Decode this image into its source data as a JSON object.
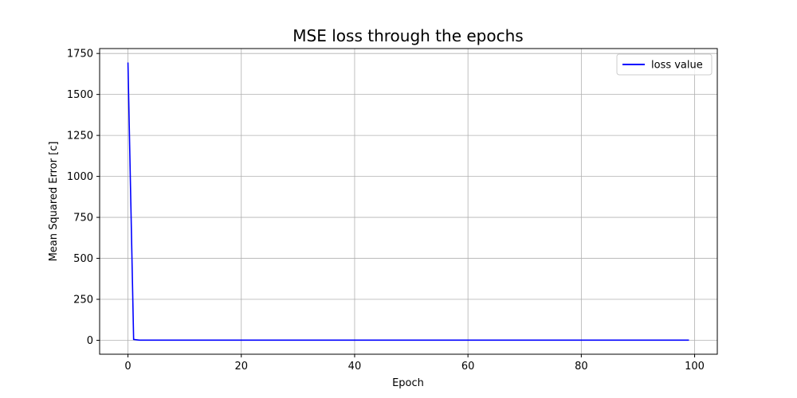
{
  "chart_data": {
    "type": "line",
    "title": "MSE loss through the epochs",
    "xlabel": "Epoch",
    "ylabel": "Mean Squared Error [c]",
    "xlim": [
      -5,
      104
    ],
    "ylim": [
      -85,
      1780
    ],
    "xticks": [
      0,
      20,
      40,
      60,
      80,
      100
    ],
    "yticks": [
      0,
      250,
      500,
      750,
      1000,
      1250,
      1500,
      1750
    ],
    "grid": true,
    "legend_position": "top-right",
    "series": [
      {
        "name": "loss value",
        "color": "#0000ff",
        "x": [
          0,
          1,
          2,
          5,
          10,
          20,
          30,
          40,
          50,
          60,
          70,
          80,
          90,
          99
        ],
        "y": [
          1695,
          5,
          1,
          1,
          1,
          1,
          1,
          1,
          1,
          1,
          1,
          1,
          1,
          1
        ]
      }
    ]
  }
}
